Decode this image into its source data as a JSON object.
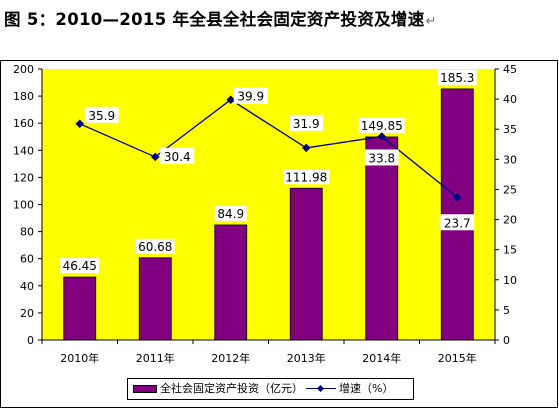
{
  "title": "图 5：2010—2015 年全县全社会固定资产投资及增速",
  "title_mark": "↵",
  "chart_data": {
    "type": "bar",
    "categories": [
      "2010年",
      "2011年",
      "2012年",
      "2013年",
      "2014年",
      "2015年"
    ],
    "series": [
      {
        "name": "全社会固定资产投资（亿元）",
        "type": "bar",
        "axis": "left",
        "values": [
          46.45,
          60.68,
          84.9,
          111.98,
          149.85,
          185.3
        ],
        "labels": [
          "46.45",
          "60.68",
          "84.9",
          "111.98",
          "149.85",
          "185.3"
        ]
      },
      {
        "name": "增速（%）",
        "type": "line",
        "axis": "right",
        "values": [
          35.9,
          30.4,
          39.9,
          31.9,
          33.8,
          23.7
        ],
        "labels": [
          "35.9",
          "30.4",
          "39.9",
          "31.9",
          "33.8",
          "23.7"
        ]
      }
    ],
    "ylim_left": [
      0,
      200
    ],
    "yticks_left": [
      "0",
      "20",
      "40",
      "60",
      "80",
      "100",
      "120",
      "140",
      "160",
      "180",
      "200"
    ],
    "ylim_right": [
      0,
      45
    ],
    "yticks_right": [
      "0",
      "5",
      "10",
      "15",
      "20",
      "25",
      "30",
      "35",
      "40",
      "45"
    ],
    "legend": "bottom",
    "colors": {
      "plot_background": "#ffff00",
      "bar": "#800080",
      "line": "#000080"
    }
  }
}
